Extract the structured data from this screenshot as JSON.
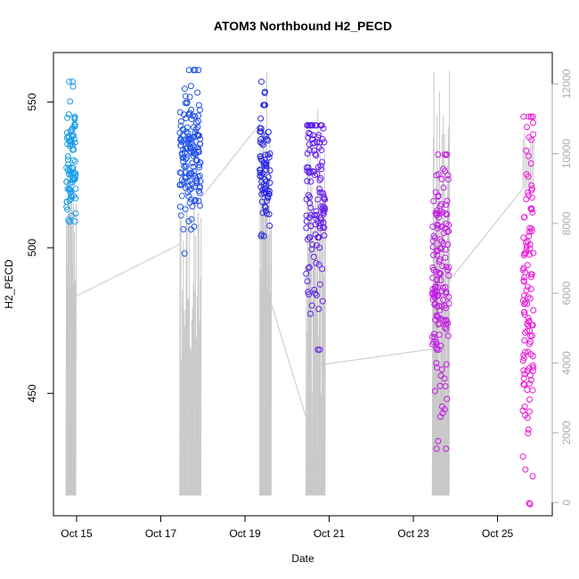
{
  "chart_data": {
    "type": "scatter",
    "title": "ATOM3 Northbound H2_PECD",
    "xlabel": "Date",
    "ylabel": "H2_PECD",
    "x_ticks": [
      {
        "day": 15,
        "label": "Oct 15"
      },
      {
        "day": 17,
        "label": "Oct 17"
      },
      {
        "day": 19,
        "label": "Oct 19"
      },
      {
        "day": 21,
        "label": "Oct 21"
      },
      {
        "day": 23,
        "label": "Oct 23"
      },
      {
        "day": 25,
        "label": "Oct 25"
      }
    ],
    "xlim": [
      14.45,
      26.3
    ],
    "y_left": {
      "ticks": [
        450,
        500,
        550
      ],
      "ylim": [
        408,
        567
      ]
    },
    "y_right": {
      "ticks": [
        0,
        2000,
        4000,
        6000,
        8000,
        10000,
        12000
      ],
      "ylim": [
        -380,
        12900
      ]
    },
    "colors": {
      "series_start": "#18a0e8",
      "series_mid": "#2a1fe6",
      "series_mid2": "#9a1cf0",
      "series_end": "#f018d8",
      "line": "#c8c8c8",
      "right_axis": "#aaaaaa"
    },
    "scatter_clusters": [
      {
        "day_start": 14.75,
        "day_end": 14.98,
        "y_mean": 527,
        "y_sd": 12,
        "y_min": 509,
        "y_max": 557,
        "n": 85
      },
      {
        "day_start": 17.45,
        "day_end": 17.95,
        "y_mean": 533,
        "y_sd": 11,
        "y_min": 498,
        "y_max": 561,
        "n": 160
      },
      {
        "day_start": 19.35,
        "day_end": 19.6,
        "y_mean": 529,
        "y_sd": 12,
        "y_min": 504,
        "y_max": 557,
        "n": 75
      },
      {
        "day_start": 20.45,
        "day_end": 20.9,
        "y_mean": 517,
        "y_sd": 18,
        "y_min": 465,
        "y_max": 542,
        "n": 130
      },
      {
        "day_start": 23.45,
        "day_end": 23.85,
        "y_mean": 488,
        "y_sd": 24,
        "y_min": 431,
        "y_max": 532,
        "n": 150
      },
      {
        "day_start": 25.6,
        "day_end": 25.85,
        "y_mean": 478,
        "y_sd": 32,
        "y_min": 412,
        "y_max": 545,
        "n": 120
      }
    ],
    "line_series": {
      "axis": "right",
      "segments": [
        {
          "from": [
            14.88,
            5850
          ],
          "to": [
            17.45,
            7400
          ]
        },
        {
          "from": [
            17.8,
            8500
          ],
          "to": [
            19.45,
            11000
          ]
        },
        {
          "from": [
            19.6,
            5800
          ],
          "to": [
            20.45,
            2450
          ]
        },
        {
          "from": [
            20.8,
            3950
          ],
          "to": [
            23.45,
            4400
          ]
        },
        {
          "from": [
            23.85,
            6350
          ],
          "to": [
            25.6,
            9000
          ]
        }
      ],
      "spikes": [
        {
          "day_start": 14.75,
          "day_end": 14.98,
          "bottom": 200,
          "top_min": 5500,
          "top_max": 9400,
          "n": 18
        },
        {
          "day_start": 17.45,
          "day_end": 17.95,
          "bottom": 200,
          "top_min": 3500,
          "top_max": 9000,
          "n": 28
        },
        {
          "day_start": 19.35,
          "day_end": 19.62,
          "bottom": 200,
          "top_min": 6000,
          "top_max": 12700,
          "n": 20
        },
        {
          "day_start": 20.45,
          "day_end": 20.9,
          "bottom": 200,
          "top_min": 3000,
          "top_max": 11700,
          "n": 26
        },
        {
          "day_start": 23.45,
          "day_end": 23.85,
          "bottom": 200,
          "top_min": 3000,
          "top_max": 12400,
          "n": 28
        },
        {
          "day_start": 25.6,
          "day_end": 25.85,
          "bottom": 9000,
          "top_min": 10000,
          "top_max": 10700,
          "n": 8
        }
      ]
    }
  }
}
